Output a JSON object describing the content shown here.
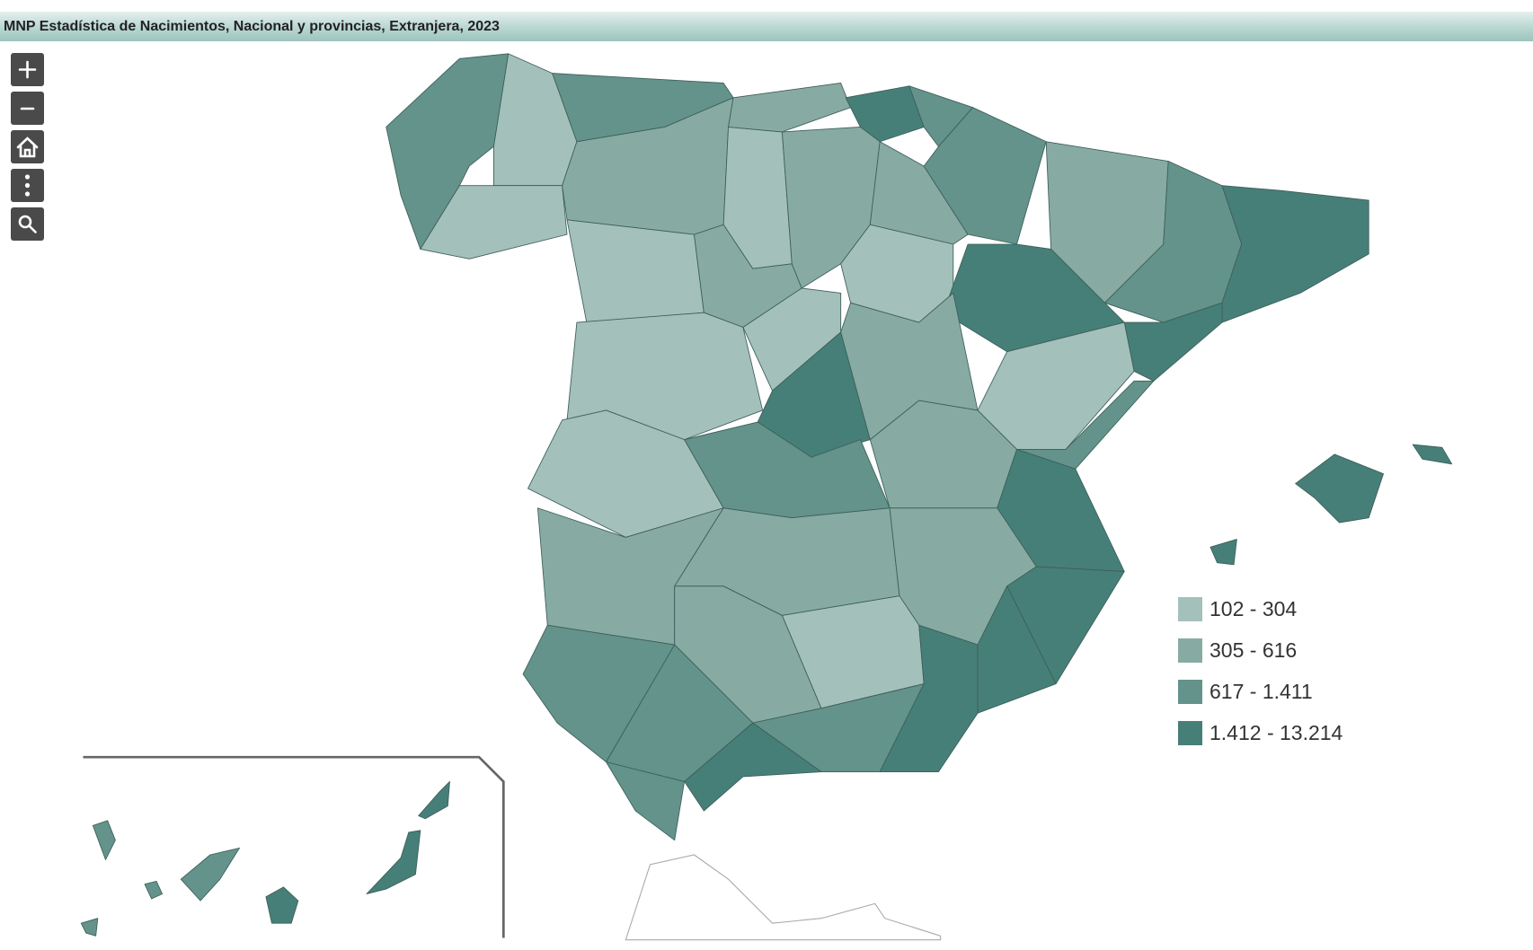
{
  "header": {
    "title": "MNP Estadística de Nacimientos, Nacional y provincias, Extranjera, 2023"
  },
  "legend": [
    {
      "label": "102 - 304",
      "color": "#a4c0ba"
    },
    {
      "label": "305 - 616",
      "color": "#87aba3"
    },
    {
      "label": "617 - 1.411",
      "color": "#63938b"
    },
    {
      "label": "1.412 - 13.214",
      "color": "#467f78"
    }
  ]
}
